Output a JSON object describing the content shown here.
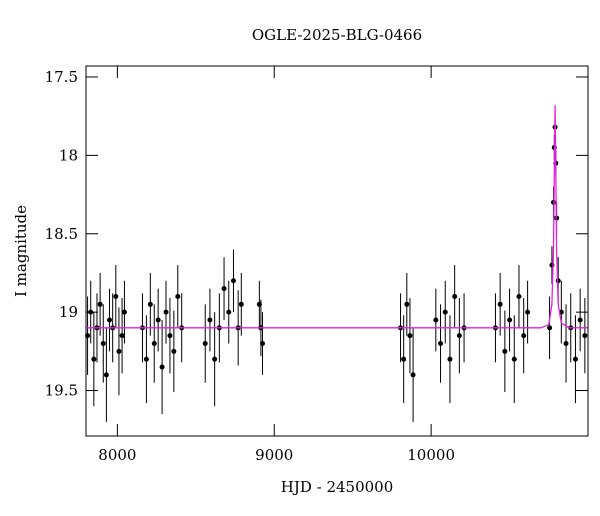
{
  "chart_data": {
    "type": "scatter",
    "title": "OGLE-2025-BLG-0466",
    "x_label": "HJD - 2450000",
    "y_label": "I magnitude",
    "xlim": [
      7800,
      11000
    ],
    "xticks": [
      8000,
      9000,
      10000
    ],
    "ylim": [
      17.43,
      19.79
    ],
    "yticks": [
      17.5,
      18,
      18.5,
      19,
      19.5
    ],
    "y_inverted": true,
    "color": "#000000",
    "x": [
      7810,
      7830,
      7850,
      7870,
      7890,
      7910,
      7930,
      7950,
      7970,
      7990,
      8010,
      8030,
      8045,
      8160,
      8185,
      8210,
      8235,
      8260,
      8285,
      8310,
      8335,
      8360,
      8385,
      8410,
      8560,
      8590,
      8620,
      8650,
      8680,
      8710,
      8740,
      8770,
      8790,
      8905,
      8915,
      8925,
      9805,
      9825,
      9845,
      9865,
      9885,
      10030,
      10060,
      10090,
      10120,
      10150,
      10180,
      10210,
      10410,
      10440,
      10470,
      10500,
      10530,
      10560,
      10590,
      10615,
      10755,
      10770,
      10780,
      10785,
      10790,
      10795,
      10800,
      10810,
      10830,
      10860,
      10890,
      10920,
      10950,
      10980
    ],
    "values": [
      19.15,
      19.0,
      19.3,
      19.1,
      18.95,
      19.2,
      19.4,
      19.05,
      19.1,
      18.9,
      19.25,
      19.15,
      19.0,
      19.1,
      19.3,
      18.95,
      19.2,
      19.05,
      19.35,
      19.0,
      19.15,
      19.25,
      18.9,
      19.1,
      19.2,
      19.05,
      19.3,
      19.1,
      18.85,
      19.0,
      18.8,
      19.1,
      18.95,
      18.95,
      19.1,
      19.2,
      19.1,
      19.3,
      18.95,
      19.15,
      19.4,
      19.05,
      19.2,
      19.0,
      19.3,
      18.9,
      19.15,
      19.1,
      19.1,
      18.95,
      19.25,
      19.05,
      19.3,
      18.9,
      19.15,
      19.0,
      19.1,
      18.7,
      18.3,
      17.95,
      17.82,
      18.05,
      18.4,
      18.8,
      19.0,
      19.2,
      19.1,
      19.3,
      19.05,
      19.15
    ],
    "errors": [
      0.25,
      0.2,
      0.3,
      0.22,
      0.2,
      0.25,
      0.3,
      0.2,
      0.22,
      0.2,
      0.28,
      0.24,
      0.2,
      0.22,
      0.28,
      0.2,
      0.25,
      0.2,
      0.3,
      0.2,
      0.24,
      0.26,
      0.2,
      0.22,
      0.25,
      0.2,
      0.3,
      0.22,
      0.2,
      0.2,
      0.2,
      0.24,
      0.2,
      0.15,
      0.18,
      0.2,
      0.22,
      0.28,
      0.2,
      0.24,
      0.3,
      0.2,
      0.25,
      0.2,
      0.28,
      0.2,
      0.24,
      0.22,
      0.22,
      0.2,
      0.26,
      0.2,
      0.28,
      0.2,
      0.24,
      0.2,
      0.2,
      0.12,
      0.1,
      0.08,
      0.06,
      0.08,
      0.1,
      0.15,
      0.2,
      0.25,
      0.22,
      0.28,
      0.2,
      0.24
    ],
    "model": {
      "color": "#e020e0",
      "x": [
        7800,
        10700,
        10750,
        10770,
        10780,
        10785,
        10790,
        10795,
        10800,
        10810,
        10830,
        10880,
        11000
      ],
      "values": [
        19.1,
        19.1,
        19.08,
        18.95,
        18.6,
        18.1,
        17.68,
        18.1,
        18.6,
        18.95,
        19.07,
        19.1,
        19.1
      ]
    }
  }
}
